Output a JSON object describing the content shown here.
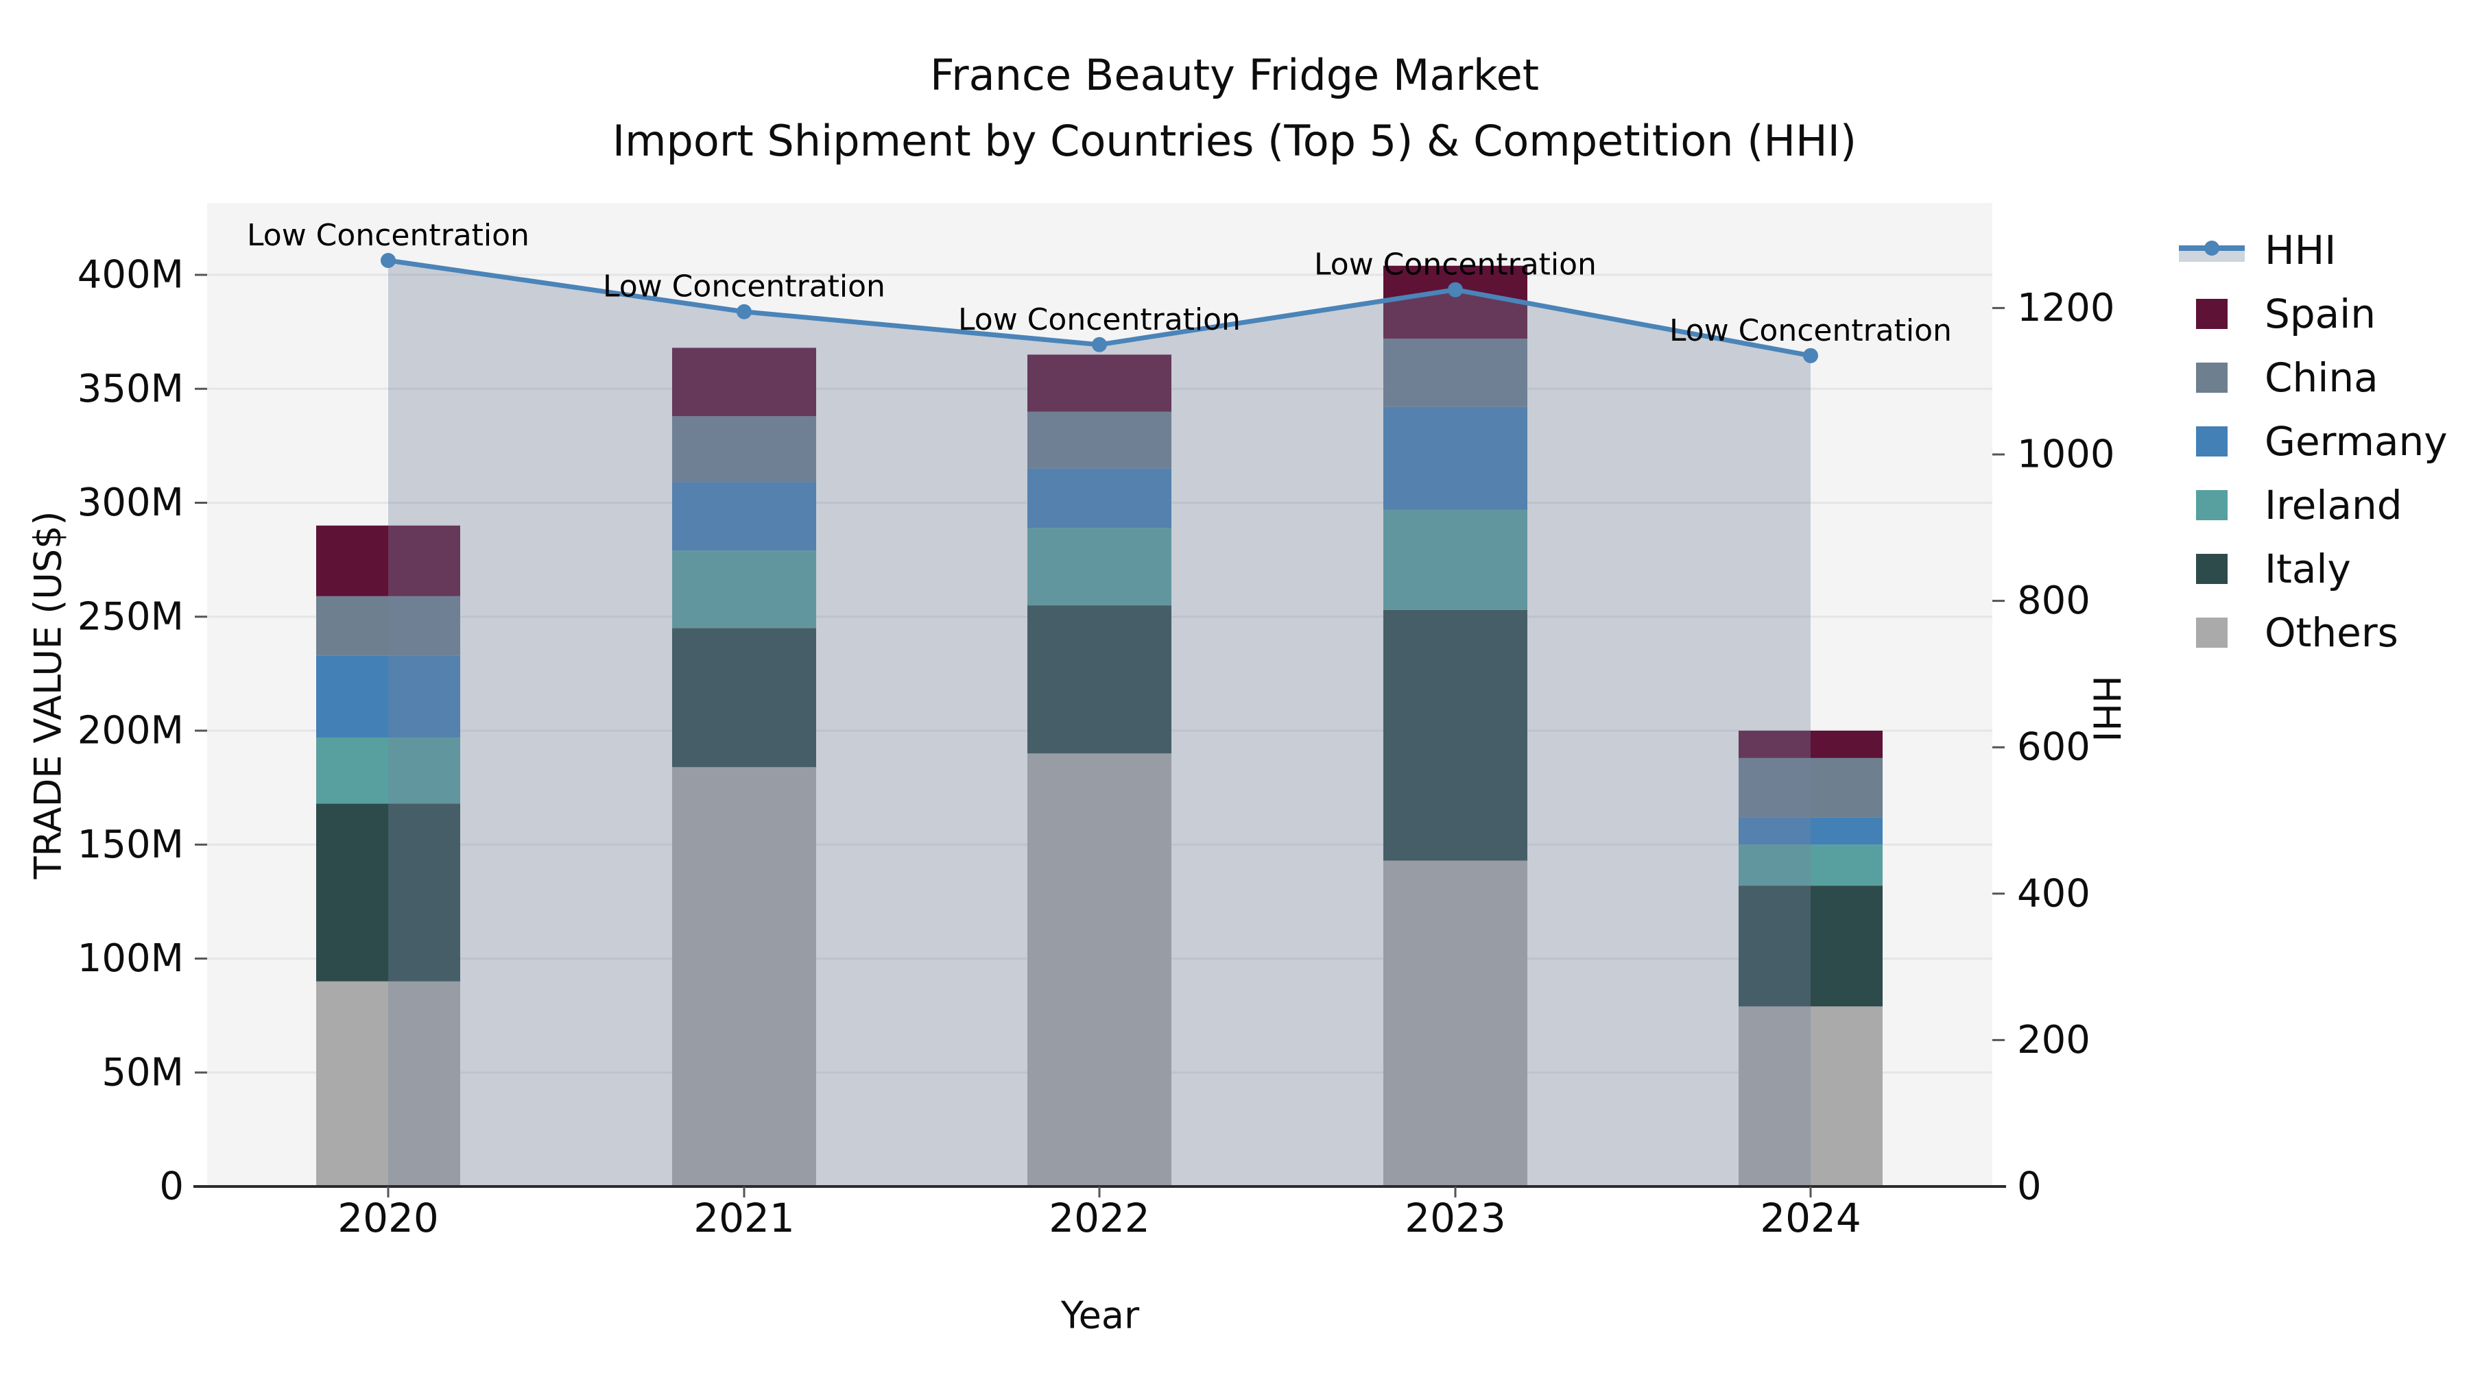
{
  "title": {
    "line1": "France Beauty Fridge Market",
    "line2": "Import Shipment by Countries (Top 5) & Competition (HHI)"
  },
  "axes": {
    "left_label": "TRADE VALUE (US$)",
    "right_label": "HHI",
    "bottom_label": "Year",
    "left_ticks": [
      "0",
      "50M",
      "100M",
      "150M",
      "200M",
      "250M",
      "300M",
      "350M",
      "400M"
    ],
    "right_ticks": [
      "0",
      "200",
      "400",
      "600",
      "800",
      "1000",
      "1200"
    ],
    "x_ticks": [
      "2020",
      "2021",
      "2022",
      "2023",
      "2024"
    ]
  },
  "legend": {
    "items": [
      {
        "label": "HHI",
        "type": "line"
      },
      {
        "label": "Spain",
        "type": "patch"
      },
      {
        "label": "China",
        "type": "patch"
      },
      {
        "label": "Germany",
        "type": "patch"
      },
      {
        "label": "Ireland",
        "type": "patch"
      },
      {
        "label": "Italy",
        "type": "patch"
      },
      {
        "label": "Others",
        "type": "patch"
      }
    ]
  },
  "annotations": {
    "text": "Low Concentration"
  },
  "colors": {
    "plot_bg": "#f4f4f5",
    "grid": "#e4e5e8",
    "axis_spine": "#2b2b2b",
    "tick": "#555555",
    "text": "#0d0d0d",
    "hhi_line": "#4a84b8",
    "hhi_area": "rgba(118,132,157,0.35)",
    "hhi_band_legend": "#cfd5dd"
  },
  "chart_data": {
    "type": "bar",
    "subtype": "stacked-bars-with-line",
    "title": "France Beauty Fridge Market — Import Shipment by Countries (Top 5) & Competition (HHI)",
    "xlabel": "Year",
    "ylabel": "TRADE VALUE (US$)",
    "ylabel_right": "HHI",
    "categories": [
      "2020",
      "2021",
      "2022",
      "2023",
      "2024"
    ],
    "ylim_left_musd": [
      0,
      430
    ],
    "ylim_right_hhi": [
      0,
      1343
    ],
    "grid": true,
    "legend_position": "right",
    "series": [
      {
        "name": "Others",
        "color": "#a9aaa9",
        "values_musd": [
          90,
          184,
          190,
          143,
          79
        ]
      },
      {
        "name": "Italy",
        "color": "#2d4b4a",
        "values_musd": [
          78,
          61,
          65,
          110,
          53
        ]
      },
      {
        "name": "Ireland",
        "color": "#58a0a0",
        "values_musd": [
          29,
          34,
          34,
          44,
          18
        ]
      },
      {
        "name": "Germany",
        "color": "#4380b6",
        "values_musd": [
          36,
          30,
          26,
          45,
          12
        ]
      },
      {
        "name": "China",
        "color": "#6e7f8f",
        "values_musd": [
          26,
          29,
          25,
          30,
          26
        ]
      },
      {
        "name": "Spain",
        "color": "#5e1236",
        "values_musd": [
          31,
          30,
          25,
          32,
          12
        ]
      }
    ],
    "bar_totals_musd": [
      290,
      368,
      365,
      404,
      200
    ],
    "line_series": {
      "name": "HHI",
      "values": [
        1265,
        1195,
        1150,
        1225,
        1135
      ],
      "point_annotation": "Low Concentration",
      "area_fill_under_line": true
    }
  }
}
